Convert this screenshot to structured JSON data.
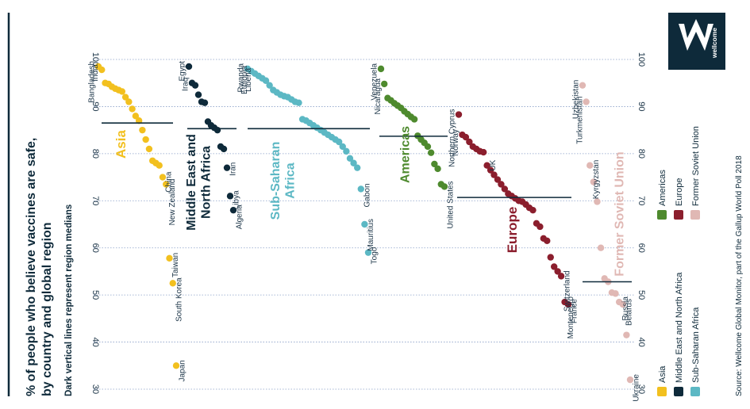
{
  "chart_data": {
    "type": "scatter",
    "title": "% of people who believe vaccines are safe, by country and global region",
    "subtitle": "Dark vertical lines represent region medians",
    "source": "Source: Wellcome Global Monitor, part of the Gallup World Poll 2018",
    "logo_text": "wellcome",
    "value_axis": {
      "min": 30,
      "max": 100,
      "ticks": [
        30,
        40,
        50,
        60,
        70,
        80,
        90,
        100
      ]
    },
    "legend": [
      {
        "name": "Asia",
        "color": "#F2C01F"
      },
      {
        "name": "Middle East and North Africa",
        "color": "#0E2A3A"
      },
      {
        "name": "Sub-Saharan Africa",
        "color": "#5CB8C4"
      },
      {
        "name": "Americas",
        "color": "#4E8A2E"
      },
      {
        "name": "Europe",
        "color": "#8B1E2D"
      },
      {
        "name": "Former Soviet Union",
        "color": "#E0B8B4"
      }
    ],
    "regions": [
      {
        "name": "Asia",
        "label_lines": [
          "Asia"
        ],
        "color": "#F2C01F",
        "median": 86.5,
        "values": [
          98.5,
          97.8,
          95,
          94.8,
          94.2,
          93.8,
          93.5,
          93.2,
          92,
          91,
          89.5,
          88,
          87,
          85,
          83,
          81,
          78.5,
          78,
          77.5,
          75,
          73.5,
          57.8,
          52.5,
          35
        ],
        "labels": [
          {
            "text": "Bangladesh",
            "index": 0
          },
          {
            "text": "India",
            "index": 1
          },
          {
            "text": "China",
            "index": 19
          },
          {
            "text": "New Zealand",
            "index": 20
          },
          {
            "text": "Taiwan",
            "index": 21
          },
          {
            "text": "South Korea",
            "index": 22
          },
          {
            "text": "Japan",
            "index": 23
          }
        ]
      },
      {
        "name": "Middle East and North Africa",
        "label_lines": [
          "Middle East and",
          "North Africa"
        ],
        "color": "#0E2A3A",
        "median": 85.3,
        "values": [
          98.5,
          95,
          94.5,
          92.5,
          91,
          90.8,
          86.8,
          86,
          85.5,
          85,
          81.5,
          81,
          77,
          71,
          68
        ],
        "labels": [
          {
            "text": "Egypt",
            "index": 0
          },
          {
            "text": "Iraq",
            "index": 1
          },
          {
            "text": "Iran",
            "index": 12
          },
          {
            "text": "Libya",
            "index": 13
          },
          {
            "text": "Algeria",
            "index": 14
          }
        ]
      },
      {
        "name": "Sub-Saharan Africa",
        "label_lines": [
          "Sub-Saharan",
          "Africa"
        ],
        "color": "#5CB8C4",
        "median": 85.3,
        "values": [
          98,
          97.5,
          97,
          96.5,
          96,
          95.5,
          94.5,
          93.5,
          93,
          92.5,
          92.2,
          92,
          91.5,
          91,
          90.8,
          87.3,
          87,
          86.5,
          86,
          85.5,
          85,
          84.5,
          84,
          83.5,
          83,
          82.5,
          81.5,
          80.5,
          79,
          78,
          77,
          72.5,
          65,
          59
        ],
        "labels": [
          {
            "text": "Rwanda",
            "index": 0
          },
          {
            "text": "Ethiopia",
            "index": 1
          },
          {
            "text": "Liberia",
            "index": 2
          },
          {
            "text": "Gabon",
            "index": 31
          },
          {
            "text": "Mauritius",
            "index": 32
          },
          {
            "text": "Togo",
            "index": 33
          }
        ]
      },
      {
        "name": "Americas",
        "label_lines": [
          "Americas"
        ],
        "color": "#4E8A2E",
        "median": 83.7,
        "values": [
          98,
          94.8,
          91.8,
          91.3,
          90.7,
          90.2,
          89.7,
          89,
          88.4,
          87.8,
          87.3,
          83.8,
          83,
          82.3,
          81.5,
          80.2,
          77.8,
          76.8,
          73.5,
          73
        ],
        "labels": [
          {
            "text": "Venezuela",
            "index": 0
          },
          {
            "text": "Nicaragua",
            "index": 1
          },
          {
            "text": "United States",
            "index": 19
          }
        ]
      },
      {
        "name": "Europe",
        "label_lines": [
          "Europe"
        ],
        "color": "#8B1E2D",
        "median": 70.7,
        "values": [
          88.3,
          84,
          83.5,
          82.5,
          81.5,
          81,
          80.5,
          80.3,
          77.5,
          76.5,
          75.5,
          74.5,
          73.5,
          72.5,
          71.5,
          71,
          70.5,
          70,
          69.8,
          69.2,
          68.5,
          68,
          65.2,
          64.5,
          62,
          61.5,
          58,
          56,
          55,
          54,
          48.5,
          48
        ],
        "labels": [
          {
            "text": "Northern Cyprus",
            "index": 0
          },
          {
            "text": "Norway",
            "index": 1
          },
          {
            "text": "UK",
            "index": 8
          },
          {
            "text": "Switzerland",
            "index": 29
          },
          {
            "text": "Montenegro",
            "index": 30
          },
          {
            "text": "France",
            "index": 31
          }
        ]
      },
      {
        "name": "Former Soviet Union",
        "label_lines": [
          "Former Soviet Union"
        ],
        "color": "#E0B8B4",
        "median": 52.8,
        "values": [
          94.5,
          91,
          77.5,
          74,
          69.8,
          60,
          53.5,
          52.8,
          50.5,
          50.3,
          48.5,
          48,
          41.5,
          32
        ],
        "labels": [
          {
            "text": "Uzbekistan",
            "index": 0
          },
          {
            "text": "Turkmenistan",
            "index": 1
          },
          {
            "text": "Kyrgyzstan",
            "index": 2
          },
          {
            "text": "Russia",
            "index": 10
          },
          {
            "text": "Belarus",
            "index": 11
          },
          {
            "text": "Ukraine",
            "index": 13
          }
        ]
      }
    ]
  }
}
